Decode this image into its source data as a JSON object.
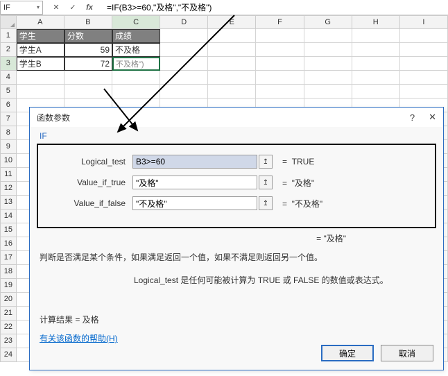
{
  "formula_bar": {
    "name_box": "IF",
    "cancel_glyph": "✕",
    "accept_glyph": "✓",
    "fx_glyph": "fx",
    "formula": "=IF(B3>=60,\"及格\",\"不及格\")"
  },
  "columns": [
    "A",
    "B",
    "C",
    "D",
    "E",
    "F",
    "G",
    "H",
    "I"
  ],
  "active_col_index": 2,
  "row_numbers": [
    "1",
    "2",
    "3",
    "4",
    "5",
    "6",
    "7",
    "8",
    "9",
    "10",
    "11",
    "12",
    "13",
    "14",
    "15",
    "16",
    "17",
    "18",
    "19",
    "20",
    "21",
    "22",
    "23",
    "24"
  ],
  "active_row_index": 2,
  "table": {
    "headers": [
      "学生",
      "分数",
      "成绩"
    ],
    "rows": [
      {
        "student": "学生A",
        "score": "59",
        "result": "不及格"
      },
      {
        "student": "学生B",
        "score": "72",
        "result": "不及格\")"
      }
    ]
  },
  "dialog": {
    "title": "函数参数",
    "help_glyph": "?",
    "close_glyph": "✕",
    "func_name": "IF",
    "params": [
      {
        "label": "Logical_test",
        "value": "B3>=60",
        "result": "TRUE",
        "hl": true
      },
      {
        "label": "Value_if_true",
        "value": "\"及格\"",
        "result": "\"及格\"",
        "hl": false
      },
      {
        "label": "Value_if_false",
        "value": "\"不及格\"",
        "result": "\"不及格\"",
        "hl": false
      }
    ],
    "ref_glyph": "↥",
    "eq_sign": "=",
    "overall_result": "= \"及格\"",
    "desc1": "判断是否满足某个条件，如果满足返回一个值，如果不满足则返回另一个值。",
    "desc2": "Logical_test   是任何可能被计算为 TRUE 或 FALSE 的数值或表达式。",
    "calc_result": "计算结果 =   及格",
    "help_link": "有关该函数的帮助(H)",
    "ok": "确定",
    "cancel": "取消"
  },
  "colors": {
    "header_bg": "#808080",
    "dialog_border": "#2a6cc2",
    "active_cell_border": "#217346"
  }
}
